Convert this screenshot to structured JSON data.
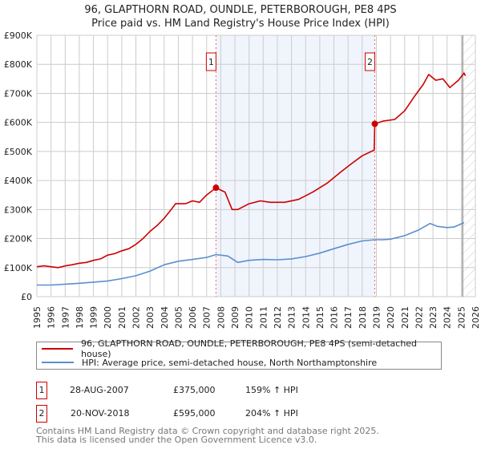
{
  "title": "96, GLAPTHORN ROAD, OUNDLE, PETERBOROUGH, PE8 4PS",
  "subtitle": "Price paid vs. HM Land Registry's House Price Index (HPI)",
  "chart_data": {
    "type": "line",
    "title": "96, GLAPTHORN ROAD, OUNDLE, PETERBOROUGH, PE8 4PS",
    "subtitle": "Price paid vs. HM Land Registry's House Price Index (HPI)",
    "xlim": [
      1995,
      2026
    ],
    "ylim": [
      0,
      900000
    ],
    "x_ticks": [
      "1995",
      "1996",
      "1997",
      "1998",
      "1999",
      "2000",
      "2001",
      "2002",
      "2003",
      "2004",
      "2005",
      "2006",
      "2007",
      "2008",
      "2009",
      "2010",
      "2011",
      "2012",
      "2013",
      "2014",
      "2015",
      "2016",
      "2017",
      "2018",
      "2019",
      "2020",
      "2021",
      "2022",
      "2023",
      "2024",
      "2025",
      "2026"
    ],
    "y_ticks": [
      {
        "v": 0,
        "label": "£0"
      },
      {
        "v": 100000,
        "label": "£100K"
      },
      {
        "v": 200000,
        "label": "£200K"
      },
      {
        "v": 300000,
        "label": "£300K"
      },
      {
        "v": 400000,
        "label": "£400K"
      },
      {
        "v": 500000,
        "label": "£500K"
      },
      {
        "v": 600000,
        "label": "£600K"
      },
      {
        "v": 700000,
        "label": "£700K"
      },
      {
        "v": 800000,
        "label": "£800K"
      },
      {
        "v": 900000,
        "label": "£900K"
      }
    ],
    "grid": true,
    "shaded_range": [
      2007.66,
      2018.89
    ],
    "hatched_from": 2025.1,
    "series": [
      {
        "name": "96, GLAPTHORN ROAD, OUNDLE, PETERBOROUGH, PE8 4PS (semi-detached house)",
        "color": "#cc0000",
        "x": [
          1995,
          1995.5,
          1996,
          1996.5,
          1997,
          1997.5,
          1998,
          1998.5,
          1999,
          1999.5,
          2000,
          2000.5,
          2001,
          2001.5,
          2002,
          2002.5,
          2003,
          2003.5,
          2004,
          2004.5,
          2004.8,
          2005.5,
          2006,
          2006.5,
          2007,
          2007.66,
          2008.3,
          2008.8,
          2009.2,
          2010,
          2010.8,
          2011.5,
          2012.5,
          2013.5,
          2014.5,
          2015.5,
          2016.5,
          2017.3,
          2018,
          2018.85,
          2018.89,
          2019.5,
          2020.3,
          2021,
          2021.7,
          2022.3,
          2022.7,
          2023.2,
          2023.7,
          2024.2,
          2024.8,
          2025.2,
          2025.3
        ],
        "y": [
          103000,
          106000,
          103000,
          100000,
          106000,
          110000,
          115000,
          118000,
          125000,
          130000,
          143000,
          148000,
          158000,
          165000,
          180000,
          200000,
          225000,
          245000,
          270000,
          300000,
          320000,
          320000,
          330000,
          325000,
          350000,
          375000,
          360000,
          300000,
          300000,
          320000,
          330000,
          325000,
          325000,
          335000,
          360000,
          390000,
          430000,
          460000,
          485000,
          505000,
          595000,
          605000,
          610000,
          640000,
          690000,
          730000,
          765000,
          745000,
          750000,
          720000,
          745000,
          770000,
          760000
        ]
      },
      {
        "name": "HPI: Average price, semi-detached house, North Northamptonshire",
        "color": "#5b8fd0",
        "x": [
          1995,
          1996,
          1997,
          1998,
          1999,
          2000,
          2001,
          2002,
          2003,
          2004,
          2005,
          2006,
          2007,
          2007.66,
          2008.5,
          2009.2,
          2010,
          2011,
          2012,
          2013,
          2014,
          2015,
          2016,
          2017,
          2018,
          2018.89,
          2019.5,
          2020,
          2021,
          2022,
          2022.8,
          2023.3,
          2024,
          2024.5,
          2025.2
        ],
        "y": [
          40000,
          40000,
          43000,
          46000,
          50000,
          54000,
          62000,
          72000,
          88000,
          110000,
          122000,
          128000,
          135000,
          145000,
          140000,
          118000,
          125000,
          128000,
          127000,
          130000,
          138000,
          150000,
          165000,
          180000,
          192000,
          196000,
          196000,
          198000,
          210000,
          230000,
          252000,
          242000,
          238000,
          240000,
          255000
        ]
      }
    ],
    "annotations": [
      {
        "label": "1",
        "x": 2007.66,
        "y": 375000
      },
      {
        "label": "2",
        "x": 2018.89,
        "y": 595000
      }
    ]
  },
  "legend": {
    "property": "96, GLAPTHORN ROAD, OUNDLE, PETERBOROUGH, PE8 4PS (semi-detached house)",
    "hpi": "HPI: Average price, semi-detached house, North Northamptonshire"
  },
  "transactions": [
    {
      "num": "1",
      "date": "28-AUG-2007",
      "price": "£375,000",
      "change": "159% ↑ HPI"
    },
    {
      "num": "2",
      "date": "20-NOV-2018",
      "price": "£595,000",
      "change": "204% ↑ HPI"
    }
  ],
  "footer": {
    "line1": "Contains HM Land Registry data © Crown copyright and database right 2025.",
    "line2": "This data is licensed under the Open Government Licence v3.0."
  }
}
